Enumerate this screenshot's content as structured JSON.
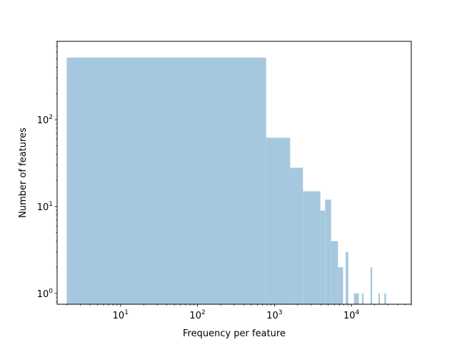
{
  "chart_data": {
    "type": "bar",
    "title": "",
    "xlabel": "Frequency per feature",
    "ylabel": "Number of features",
    "xscale": "log",
    "yscale": "log",
    "xlim": [
      1.5,
      60000
    ],
    "ylim": [
      0.75,
      800
    ],
    "grid": false,
    "bar_color": "#a6c8df",
    "x_major_ticks": [
      {
        "value": 10,
        "base": "10",
        "exp": "1"
      },
      {
        "value": 100,
        "base": "10",
        "exp": "2"
      },
      {
        "value": 1000,
        "base": "10",
        "exp": "3"
      },
      {
        "value": 10000,
        "base": "10",
        "exp": "4"
      }
    ],
    "y_major_ticks": [
      {
        "value": 1,
        "base": "10",
        "exp": "0"
      },
      {
        "value": 10,
        "base": "10",
        "exp": "1"
      },
      {
        "value": 100,
        "base": "10",
        "exp": "2"
      }
    ],
    "bins": [
      {
        "x0": 2,
        "x1": 780,
        "count": 520
      },
      {
        "x0": 780,
        "x1": 1600,
        "count": 62
      },
      {
        "x0": 1600,
        "x1": 2350,
        "count": 28
      },
      {
        "x0": 2350,
        "x1": 3950,
        "count": 15
      },
      {
        "x0": 3950,
        "x1": 4550,
        "count": 9
      },
      {
        "x0": 4550,
        "x1": 5450,
        "count": 12
      },
      {
        "x0": 5450,
        "x1": 6700,
        "count": 4
      },
      {
        "x0": 6700,
        "x1": 7800,
        "count": 2
      },
      {
        "x0": 8400,
        "x1": 9100,
        "count": 3
      },
      {
        "x0": 10800,
        "x1": 12500,
        "count": 1
      },
      {
        "x0": 13700,
        "x1": 14400,
        "count": 1
      },
      {
        "x0": 17700,
        "x1": 18600,
        "count": 2
      },
      {
        "x0": 22400,
        "x1": 23500,
        "count": 1
      },
      {
        "x0": 26800,
        "x1": 28200,
        "count": 1
      }
    ]
  }
}
